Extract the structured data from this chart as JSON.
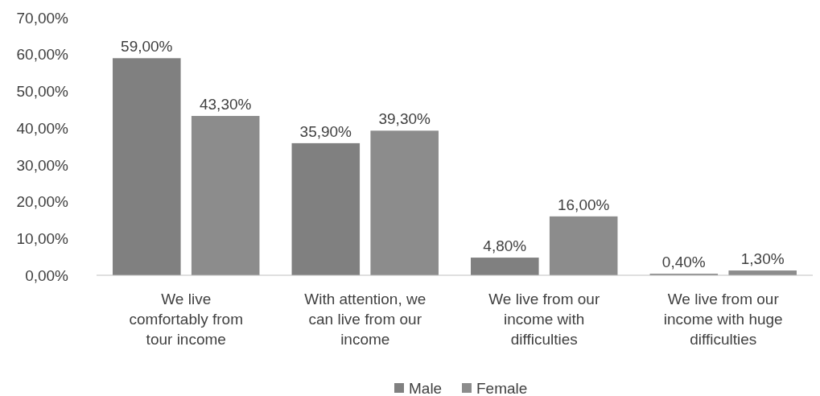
{
  "chart_data": {
    "type": "bar",
    "categories": [
      "We live comfortably from tour income",
      "With attention, we can live from our income",
      "We live from our income with difficulties",
      "We live from our income with huge difficulties"
    ],
    "series": [
      {
        "name": "Male",
        "color": "#808080",
        "values": [
          59.0,
          35.9,
          4.8,
          0.4
        ],
        "value_labels": [
          "59,00%",
          "35,90%",
          "4,80%",
          "0,40%"
        ]
      },
      {
        "name": "Female",
        "color": "#8c8c8c",
        "values": [
          43.3,
          39.3,
          16.0,
          1.3
        ],
        "value_labels": [
          "43,30%",
          "39,30%",
          "16,00%",
          "1,30%"
        ]
      }
    ],
    "ylim": [
      0,
      70
    ],
    "yticks": [
      {
        "value": 0,
        "label": "0,00%"
      },
      {
        "value": 10,
        "label": "10,00%"
      },
      {
        "value": 20,
        "label": "20,00%"
      },
      {
        "value": 30,
        "label": "30,00%"
      },
      {
        "value": 40,
        "label": "40,00%"
      },
      {
        "value": 50,
        "label": "50,00%"
      },
      {
        "value": 60,
        "label": "60,00%"
      },
      {
        "value": 70,
        "label": "70,00%"
      }
    ],
    "grid": false,
    "legend": "bottom"
  }
}
